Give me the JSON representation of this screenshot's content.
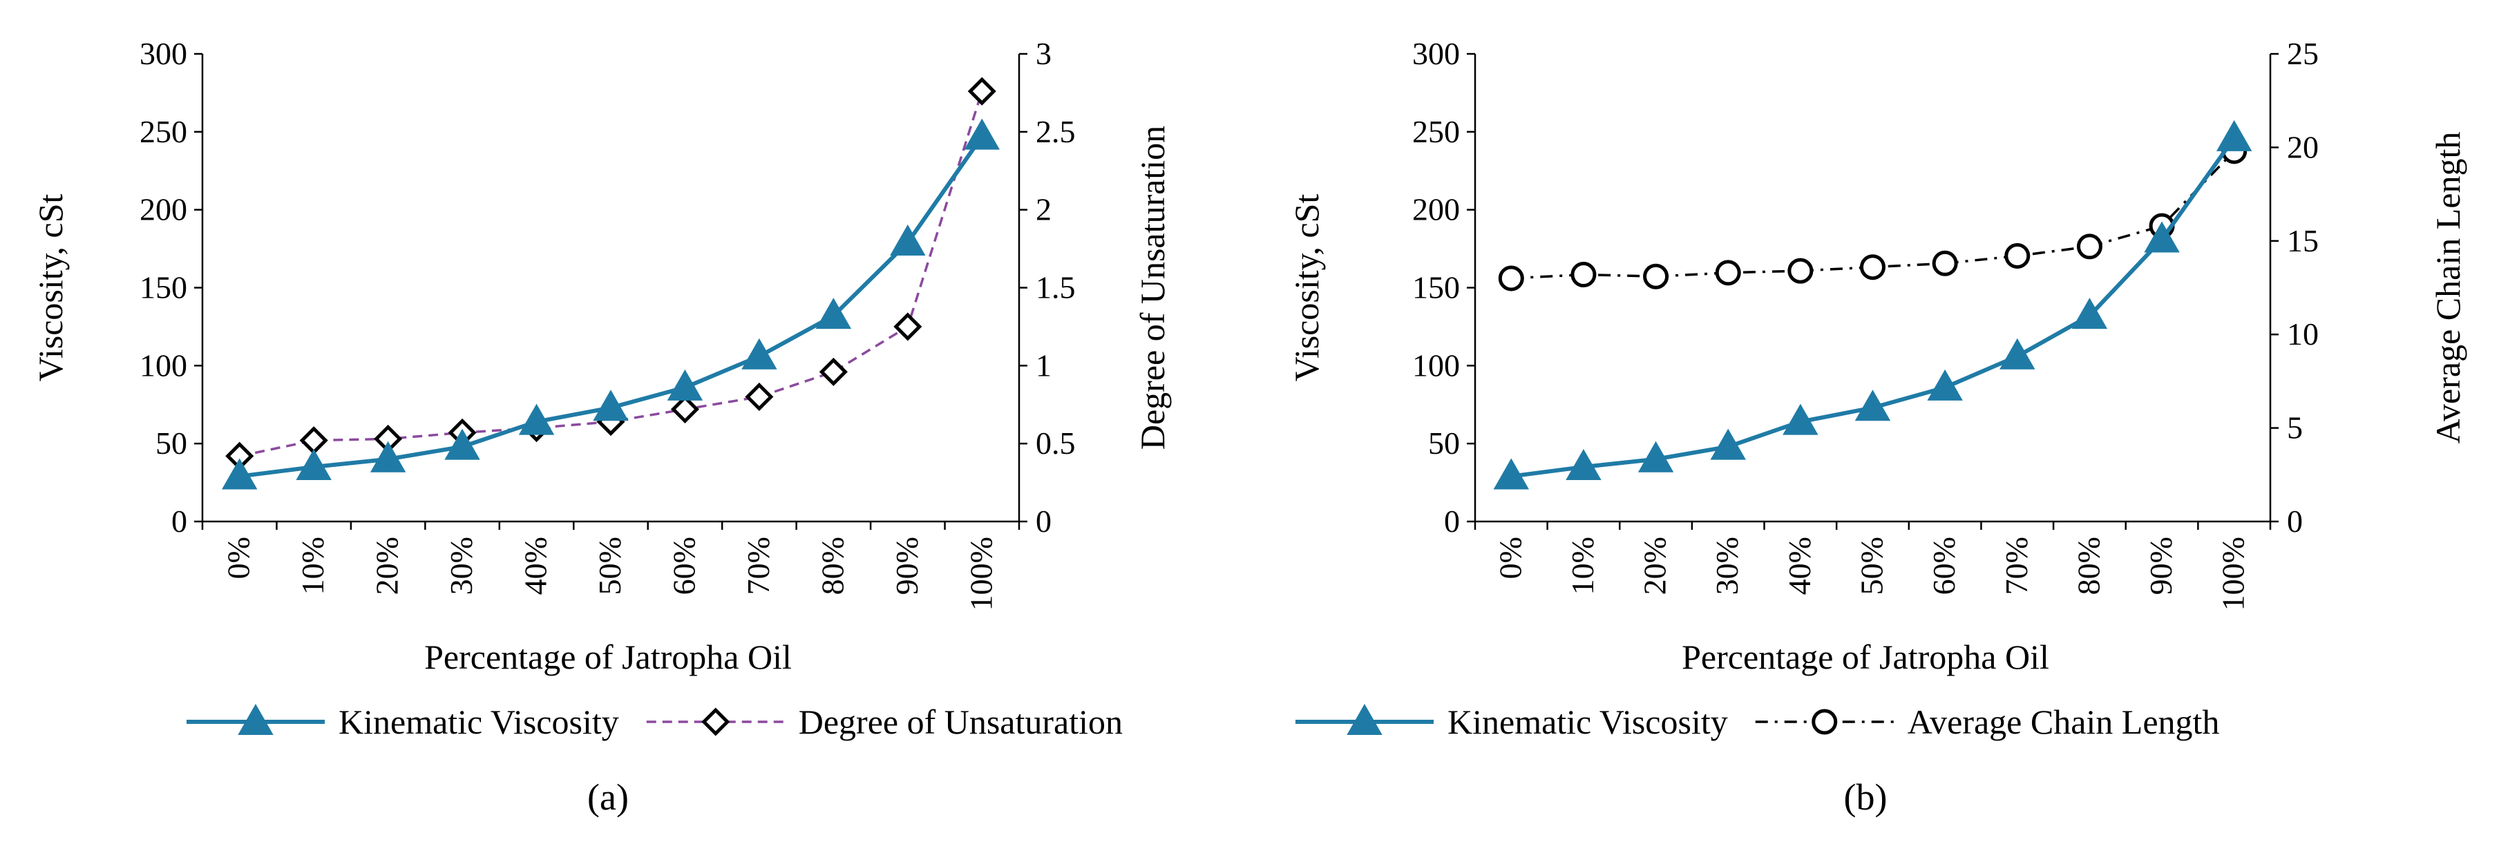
{
  "chart_data": [
    {
      "type": "line",
      "caption": "(a)",
      "xlabel": "Percentage of Jatropha Oil",
      "ylabel": "Viscosity, cSt",
      "y2label": "Degree of Unsaturation",
      "categories": [
        "0%",
        "10%",
        "20%",
        "30%",
        "40%",
        "50%",
        "60%",
        "70%",
        "80%",
        "90%",
        "100%"
      ],
      "ylim": [
        0,
        300
      ],
      "yticks": [
        "0",
        "50",
        "100",
        "150",
        "200",
        "250",
        "300"
      ],
      "y2lim": [
        0,
        3
      ],
      "y2ticks": [
        "0",
        "0.5",
        "1",
        "1.5",
        "2",
        "2.5",
        "3"
      ],
      "legend_position": "bottom",
      "series": [
        {
          "name": "Kinematic Viscosity",
          "axis": "left",
          "color": "#1f7ba6",
          "style": "solid",
          "marker": "triangle",
          "values": [
            29,
            35,
            40,
            48,
            64,
            73,
            86,
            106,
            132,
            179,
            247
          ]
        },
        {
          "name": "Degree of Unsaturation",
          "axis": "right",
          "color": "#8b4a9e",
          "style": "dashed",
          "marker": "diamond",
          "values": [
            0.42,
            0.52,
            0.53,
            0.57,
            0.6,
            0.64,
            0.72,
            0.8,
            0.96,
            1.25,
            2.76
          ]
        }
      ]
    },
    {
      "type": "line",
      "caption": "(b)",
      "xlabel": "Percentage of Jatropha Oil",
      "ylabel": "Viscosity, cSt",
      "y2label": "Average Chain Length",
      "categories": [
        "0%",
        "10%",
        "20%",
        "30%",
        "40%",
        "50%",
        "60%",
        "70%",
        "80%",
        "90%",
        "100%"
      ],
      "ylim": [
        0,
        300
      ],
      "yticks": [
        "0",
        "50",
        "100",
        "150",
        "200",
        "250",
        "300"
      ],
      "y2lim": [
        0,
        25
      ],
      "y2ticks": [
        "0",
        "5",
        "10",
        "15",
        "20",
        "25"
      ],
      "legend_position": "bottom",
      "series": [
        {
          "name": "Kinematic Viscosity",
          "axis": "left",
          "color": "#1f7ba6",
          "style": "solid",
          "marker": "triangle",
          "values": [
            29,
            35,
            40,
            48,
            64,
            73,
            86,
            106,
            132,
            181,
            246
          ]
        },
        {
          "name": "Average Chain Length",
          "axis": "right",
          "color": "#000000",
          "style": "dashdot",
          "marker": "circle",
          "values": [
            13.0,
            13.2,
            13.1,
            13.3,
            13.4,
            13.6,
            13.8,
            14.2,
            14.7,
            15.8,
            19.8
          ]
        }
      ]
    }
  ]
}
